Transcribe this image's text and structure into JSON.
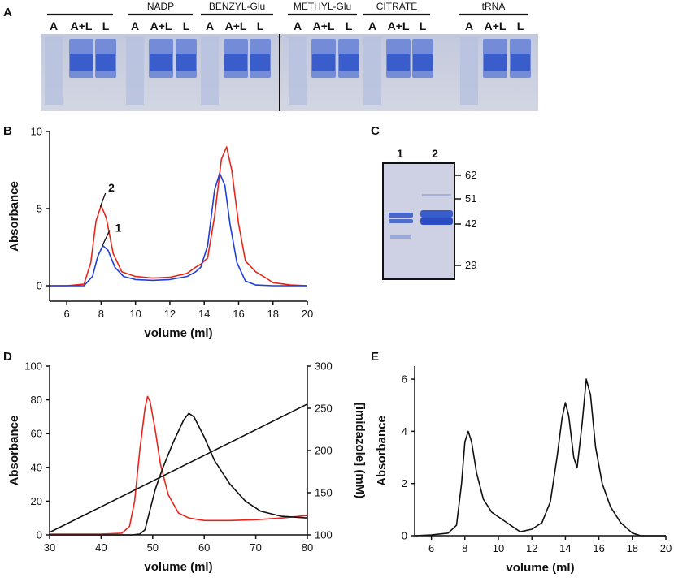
{
  "panels": {
    "A": {
      "label": "A",
      "groups": [
        {
          "name": "",
          "lanes": [
            "A",
            "A+L",
            "L"
          ]
        },
        {
          "name": "NADP",
          "lanes": [
            "A",
            "A+L",
            "L"
          ]
        },
        {
          "name": "BENZYL-Glu",
          "lanes": [
            "A",
            "A+L",
            "L"
          ]
        },
        {
          "name": "METHYL-Glu",
          "lanes": [
            "A",
            "A+L",
            "L"
          ]
        },
        {
          "name": "CITRATE",
          "lanes": [
            "A",
            "A+L",
            "L"
          ]
        },
        {
          "name": "tRNA",
          "lanes": [
            "A",
            "A+L",
            "L"
          ]
        }
      ]
    },
    "C": {
      "label": "C",
      "lanes": [
        "1",
        "2"
      ],
      "markers": [
        "62",
        "51",
        "42",
        "29"
      ]
    }
  },
  "colors": {
    "red": "#e8251c",
    "blue": "#1f3fd6",
    "black": "#111111",
    "gel_bg": "#c8cde0",
    "band": "#2f55c8"
  },
  "chart_data": [
    {
      "id": "B",
      "label": "B",
      "type": "line",
      "title": "",
      "xlabel": "volume (ml)",
      "ylabel": "Absorbance",
      "xlim": [
        5,
        20
      ],
      "ylim": [
        -1,
        10
      ],
      "xticks": [
        6,
        8,
        10,
        12,
        14,
        16,
        18,
        20
      ],
      "yticks": [
        0,
        5,
        10
      ],
      "series": [
        {
          "name": "2",
          "color": "red",
          "x": [
            5,
            6,
            7,
            7.4,
            7.7,
            8,
            8.3,
            8.7,
            9.2,
            10,
            11,
            12,
            13,
            13.5,
            13.8,
            14.2,
            14.6,
            15,
            15.3,
            15.6,
            16,
            16.4,
            17,
            17.6,
            18,
            19,
            20
          ],
          "y": [
            0,
            0,
            0.1,
            1.5,
            4.2,
            5.2,
            4.4,
            2.1,
            0.9,
            0.6,
            0.5,
            0.55,
            0.8,
            1.2,
            1.4,
            1.8,
            4.5,
            8.2,
            9.0,
            7.5,
            4.0,
            1.6,
            0.9,
            0.5,
            0.2,
            0.05,
            0
          ]
        },
        {
          "name": "1",
          "color": "blue",
          "x": [
            5,
            6,
            7,
            7.5,
            7.8,
            8.1,
            8.4,
            8.8,
            9.3,
            10,
            11,
            12,
            13,
            13.5,
            13.8,
            14.2,
            14.6,
            14.9,
            15.2,
            15.5,
            15.9,
            16.4,
            17,
            18,
            20
          ],
          "y": [
            0,
            0,
            0,
            0.6,
            1.9,
            2.6,
            2.3,
            1.2,
            0.6,
            0.4,
            0.35,
            0.4,
            0.6,
            0.9,
            1.2,
            2.6,
            6.2,
            7.3,
            6.5,
            4.0,
            1.5,
            0.3,
            0.05,
            0,
            0
          ]
        }
      ],
      "annotations": [
        {
          "text": "1",
          "x": 9.0,
          "y": 3.6
        },
        {
          "text": "2",
          "x": 8.6,
          "y": 6.2
        }
      ]
    },
    {
      "id": "D",
      "label": "D",
      "type": "line",
      "title": "",
      "xlabel": "volume (ml)",
      "ylabel": "Absorbance",
      "y2label": "[imidazole] (mM)",
      "xlim": [
        30,
        80
      ],
      "ylim": [
        0,
        100
      ],
      "y2lim": [
        100,
        300
      ],
      "xticks": [
        30,
        40,
        50,
        60,
        70,
        80
      ],
      "yticks": [
        0,
        20,
        40,
        60,
        80,
        100
      ],
      "y2ticks": [
        100,
        150,
        200,
        250,
        300
      ],
      "series": [
        {
          "name": "red",
          "color": "red",
          "x": [
            30,
            40,
            44,
            45.5,
            46.5,
            47.5,
            48.5,
            49,
            49.5,
            50.5,
            51.5,
            53,
            55,
            57,
            60,
            65,
            70,
            75,
            80
          ],
          "y": [
            0.5,
            0.5,
            1,
            5,
            20,
            50,
            75,
            82,
            79,
            62,
            42,
            24,
            13,
            10,
            8.5,
            8.5,
            9,
            10,
            11.5
          ]
        },
        {
          "name": "black",
          "color": "black",
          "x": [
            30,
            40,
            46,
            47.5,
            48.5,
            49.5,
            50.5,
            52,
            54,
            56,
            57,
            58,
            60,
            62,
            65,
            68,
            71,
            75,
            80
          ],
          "y": [
            0,
            0,
            0,
            0.5,
            3,
            15,
            27,
            40,
            55,
            68,
            72,
            70,
            58,
            44,
            30,
            20,
            14,
            11,
            10
          ]
        },
        {
          "name": "imidazole",
          "color": "black",
          "axis": "y2",
          "x": [
            30,
            80
          ],
          "y": [
            103,
            255
          ]
        }
      ]
    },
    {
      "id": "E",
      "label": "E",
      "type": "line",
      "title": "",
      "xlabel": "volume (ml)",
      "ylabel": "Absorbance",
      "xlim": [
        5,
        20
      ],
      "ylim": [
        0,
        6.5
      ],
      "xticks": [
        6,
        8,
        10,
        12,
        14,
        16,
        18,
        20
      ],
      "yticks": [
        0,
        2,
        4,
        6
      ],
      "series": [
        {
          "name": "E",
          "color": "black",
          "x": [
            5,
            6,
            7,
            7.5,
            7.8,
            8.0,
            8.2,
            8.4,
            8.7,
            9.1,
            9.6,
            10.5,
            11.3,
            12,
            12.6,
            13.1,
            13.5,
            13.8,
            14.0,
            14.2,
            14.5,
            14.7,
            15.0,
            15.25,
            15.5,
            15.8,
            16.2,
            16.7,
            17.3,
            18,
            18.5,
            20
          ],
          "y": [
            0,
            0.03,
            0.1,
            0.4,
            2.0,
            3.6,
            4.0,
            3.6,
            2.4,
            1.4,
            0.9,
            0.5,
            0.15,
            0.25,
            0.5,
            1.3,
            3.0,
            4.5,
            5.1,
            4.6,
            3.0,
            2.6,
            4.3,
            6.0,
            5.4,
            3.4,
            2.0,
            1.1,
            0.5,
            0.1,
            0,
            0
          ]
        }
      ]
    }
  ]
}
